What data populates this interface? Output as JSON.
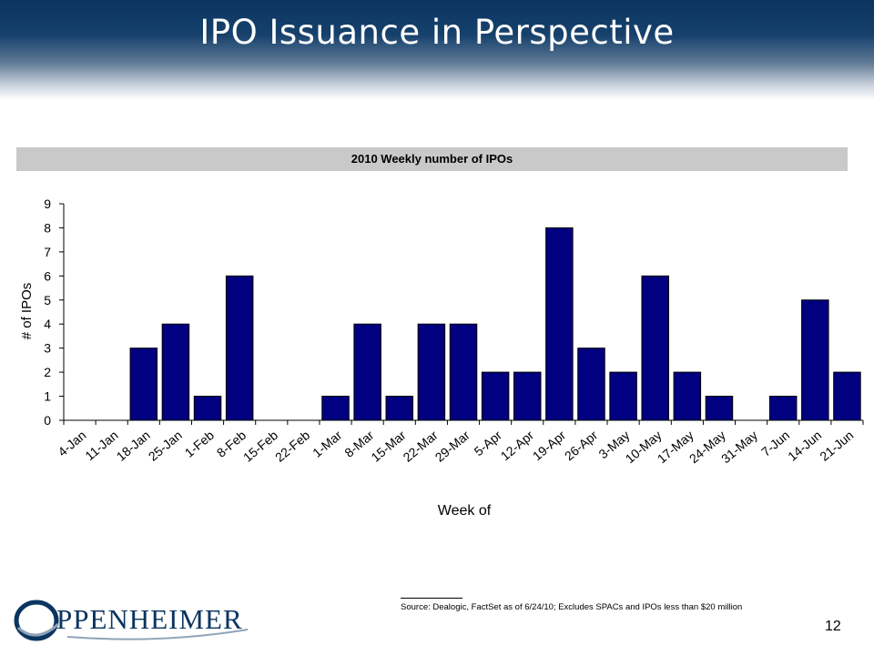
{
  "page": {
    "title": "IPO Issuance in Perspective",
    "number": "12"
  },
  "chart_data": {
    "type": "bar",
    "title": "2010 Weekly number of IPOs",
    "xlabel": "Week of",
    "ylabel": "# of IPOs",
    "ylim": [
      0,
      9
    ],
    "yticks": [
      "0",
      "1",
      "2",
      "3",
      "4",
      "5",
      "6",
      "7",
      "8",
      "9"
    ],
    "grid": false,
    "categories": [
      "4-Jan",
      "11-Jan",
      "18-Jan",
      "25-Jan",
      "1-Feb",
      "8-Feb",
      "15-Feb",
      "22-Feb",
      "1-Mar",
      "8-Mar",
      "15-Mar",
      "22-Mar",
      "29-Mar",
      "5-Apr",
      "12-Apr",
      "19-Apr",
      "26-Apr",
      "3-May",
      "10-May",
      "17-May",
      "24-May",
      "31-May",
      "7-Jun",
      "14-Jun",
      "21-Jun"
    ],
    "values": [
      0,
      0,
      3,
      4,
      1,
      6,
      0,
      0,
      1,
      4,
      1,
      4,
      4,
      2,
      2,
      8,
      3,
      2,
      6,
      2,
      1,
      0,
      1,
      5,
      2
    ],
    "bar_color": "#000080"
  },
  "footnote": {
    "source": "Source: Dealogic, FactSet as of 6/24/10; Excludes SPACs and IPOs less than $20 million"
  },
  "logo": {
    "text": "PPENHEIMER",
    "color": "#0b3560"
  }
}
